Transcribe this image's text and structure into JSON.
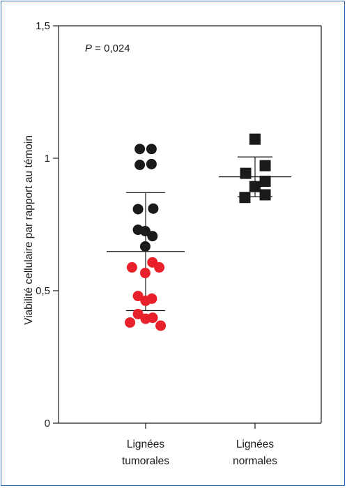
{
  "chart_data": {
    "type": "scatter",
    "title": "",
    "ylabel": "Viabilité cellulaire par rapport au témoin",
    "ylim": [
      0,
      1.5
    ],
    "yticks": [
      0,
      0.5,
      1,
      1.5
    ],
    "ytick_labels": [
      "0",
      "0,5",
      "1",
      "1,5"
    ],
    "annotation": {
      "p_italic": "P",
      "p_value": " = 0,024"
    },
    "categories": [
      {
        "line1": "Lignées",
        "line2": "tumorales"
      },
      {
        "line1": "Lignées",
        "line2": "normales"
      }
    ],
    "colors": {
      "axis": "#1a1a1a",
      "black_point": "#1a1a1a",
      "red_point": "#e8202a",
      "square": "#1a1a1a",
      "frame": "#2a6fb8"
    },
    "groups": [
      {
        "category": 0,
        "mean": 0.648,
        "sd_upper": 0.87,
        "sd_lower": 0.425,
        "points": [
          {
            "x": -0.3,
            "y": 1.035,
            "color": "black"
          },
          {
            "x": 0.3,
            "y": 1.035,
            "color": "black"
          },
          {
            "x": -0.3,
            "y": 0.975,
            "color": "black"
          },
          {
            "x": 0.3,
            "y": 0.978,
            "color": "black"
          },
          {
            "x": -0.39,
            "y": 0.808,
            "color": "black"
          },
          {
            "x": 0.39,
            "y": 0.81,
            "color": "black"
          },
          {
            "x": -0.39,
            "y": 0.73,
            "color": "black"
          },
          {
            "x": -0.02,
            "y": 0.725,
            "color": "black"
          },
          {
            "x": 0.35,
            "y": 0.706,
            "color": "black"
          },
          {
            "x": -0.02,
            "y": 0.667,
            "color": "black"
          },
          {
            "x": -0.7,
            "y": 0.588,
            "color": "red"
          },
          {
            "x": 0.35,
            "y": 0.607,
            "color": "red"
          },
          {
            "x": 0.7,
            "y": 0.588,
            "color": "red"
          },
          {
            "x": -0.02,
            "y": 0.567,
            "color": "red"
          },
          {
            "x": -0.39,
            "y": 0.48,
            "color": "red"
          },
          {
            "x": 0.32,
            "y": 0.47,
            "color": "red"
          },
          {
            "x": 0.0,
            "y": 0.462,
            "color": "red"
          },
          {
            "x": -0.39,
            "y": 0.412,
            "color": "red"
          },
          {
            "x": -0.8,
            "y": 0.38,
            "color": "red"
          },
          {
            "x": 0.0,
            "y": 0.394,
            "color": "red"
          },
          {
            "x": 0.36,
            "y": 0.398,
            "color": "red"
          },
          {
            "x": 0.77,
            "y": 0.368,
            "color": "red"
          }
        ]
      },
      {
        "category": 1,
        "mean": 0.93,
        "sd_upper": 1.005,
        "sd_lower": 0.855,
        "points": [
          {
            "x": 0.0,
            "y": 1.072,
            "color": "square"
          },
          {
            "x": -0.48,
            "y": 0.943,
            "color": "square"
          },
          {
            "x": 0.52,
            "y": 0.972,
            "color": "square"
          },
          {
            "x": 0.0,
            "y": 0.893,
            "color": "square"
          },
          {
            "x": 0.52,
            "y": 0.913,
            "color": "square"
          },
          {
            "x": -0.52,
            "y": 0.852,
            "color": "square"
          },
          {
            "x": 0.52,
            "y": 0.862,
            "color": "square"
          }
        ]
      }
    ]
  }
}
